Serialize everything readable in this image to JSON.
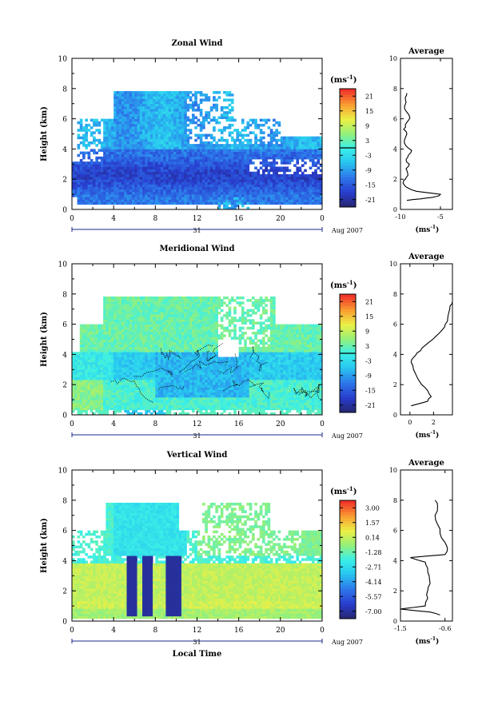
{
  "chart_data": [
    {
      "type": "heatmap",
      "title": "Zonal Wind",
      "ylabel": "Height (km)",
      "ylim": [
        0,
        10
      ],
      "xlim": [
        0,
        24
      ],
      "x_ticks": [
        "0",
        "4",
        "8",
        "12",
        "16",
        "20",
        "0"
      ],
      "y_ticks": [
        "0",
        "2",
        "4",
        "6",
        "8",
        "10"
      ],
      "date_label": "31",
      "month_label": "Aug 2007",
      "colorbar": {
        "unit_prefix": "(ms",
        "unit_exp": "-1",
        "unit_suffix": ")",
        "ticks": [
          "21",
          "15",
          "9",
          "3",
          "-3",
          "-9",
          "-15",
          "-21"
        ],
        "range": [
          -24,
          24
        ],
        "zero_line": true
      },
      "average": {
        "title": "Average",
        "xlabel_prefix": "(ms",
        "xlabel_exp": "-1",
        "xlabel_suffix": ")",
        "x_ticks": [
          "-10",
          "-5"
        ],
        "xlim": [
          -10,
          -3.5
        ],
        "profile": [
          [
            -9.2,
            0.6
          ],
          [
            -7.5,
            0.7
          ],
          [
            -6.0,
            0.8
          ],
          [
            -5.2,
            0.9
          ],
          [
            -5.0,
            1.0
          ],
          [
            -6.5,
            1.1
          ],
          [
            -8.0,
            1.2
          ],
          [
            -9.0,
            1.4
          ],
          [
            -9.5,
            1.6
          ],
          [
            -9.6,
            1.9
          ],
          [
            -9.3,
            2.1
          ],
          [
            -9.1,
            2.4
          ],
          [
            -9.3,
            2.7
          ],
          [
            -8.9,
            3.0
          ],
          [
            -9.3,
            3.3
          ],
          [
            -9.0,
            3.6
          ],
          [
            -8.6,
            3.9
          ],
          [
            -9.3,
            4.2
          ],
          [
            -9.5,
            4.6
          ],
          [
            -9.2,
            5.0
          ],
          [
            -9.6,
            5.3
          ],
          [
            -9.4,
            5.6
          ],
          [
            -9.0,
            5.9
          ],
          [
            -8.9,
            6.2
          ],
          [
            -9.3,
            6.5
          ],
          [
            -9.5,
            6.8
          ],
          [
            -9.3,
            7.1
          ],
          [
            -9.4,
            7.4
          ],
          [
            -9.2,
            7.7
          ]
        ]
      }
    },
    {
      "type": "heatmap",
      "title": "Meridional Wind",
      "ylabel": "Height (km)",
      "ylim": [
        0,
        10
      ],
      "xlim": [
        0,
        24
      ],
      "x_ticks": [
        "0",
        "4",
        "8",
        "12",
        "16",
        "20",
        "0"
      ],
      "y_ticks": [
        "0",
        "2",
        "4",
        "6",
        "8",
        "10"
      ],
      "date_label": "31",
      "month_label": "Aug 2007",
      "colorbar": {
        "unit_prefix": "(ms",
        "unit_exp": "-1",
        "unit_suffix": ")",
        "ticks": [
          "21",
          "15",
          "9",
          "3",
          "-3",
          "-9",
          "-15",
          "-21"
        ],
        "range": [
          -24,
          24
        ],
        "zero_line": true
      },
      "average": {
        "title": "Average",
        "xlabel_prefix": "(ms",
        "xlabel_exp": "-1",
        "xlabel_suffix": ")",
        "x_ticks": [
          "0",
          "2"
        ],
        "xlim": [
          -0.8,
          3.6
        ],
        "profile": [
          [
            0.1,
            0.6
          ],
          [
            1.5,
            0.9
          ],
          [
            1.8,
            1.2
          ],
          [
            1.5,
            1.6
          ],
          [
            1.0,
            2.0
          ],
          [
            0.6,
            2.5
          ],
          [
            0.3,
            3.0
          ],
          [
            0.1,
            3.5
          ],
          [
            0.3,
            3.8
          ],
          [
            0.6,
            4.1
          ],
          [
            1.0,
            4.4
          ],
          [
            1.6,
            4.8
          ],
          [
            2.2,
            5.2
          ],
          [
            2.7,
            5.6
          ],
          [
            3.0,
            6.0
          ],
          [
            3.2,
            6.4
          ],
          [
            3.3,
            6.8
          ],
          [
            3.4,
            7.2
          ],
          [
            3.6,
            7.5
          ]
        ]
      }
    },
    {
      "type": "heatmap",
      "title": "Vertical Wind",
      "ylabel": "Height (km)",
      "xlabel": "Local Time",
      "ylim": [
        0,
        10
      ],
      "xlim": [
        0,
        24
      ],
      "x_ticks": [
        "0",
        "4",
        "8",
        "12",
        "16",
        "20",
        "0"
      ],
      "y_ticks": [
        "0",
        "2",
        "4",
        "6",
        "8",
        "10"
      ],
      "date_label": "31",
      "month_label": "Aug 2007",
      "colorbar": {
        "unit_prefix": "(ms",
        "unit_exp": "-1",
        "unit_suffix": ")",
        "ticks": [
          "3.00",
          "1.57",
          "0.14",
          "-1.28",
          "-2.71",
          "-4.14",
          "-5.57",
          "-7.00"
        ],
        "range": [
          -8,
          4
        ],
        "zero_line": false
      },
      "average": {
        "title": "Average",
        "xlabel_prefix": "(ms",
        "xlabel_exp": "-1",
        "xlabel_suffix": ")",
        "x_ticks": [
          "-1.5",
          "-0.6"
        ],
        "xlim": [
          -1.5,
          -0.45
        ],
        "profile": [
          [
            -0.7,
            0.4
          ],
          [
            -0.9,
            0.6
          ],
          [
            -1.5,
            0.8
          ],
          [
            -1.0,
            1.0
          ],
          [
            -0.95,
            1.5
          ],
          [
            -0.95,
            2.0
          ],
          [
            -0.9,
            2.5
          ],
          [
            -0.92,
            3.0
          ],
          [
            -0.95,
            3.5
          ],
          [
            -1.0,
            3.9
          ],
          [
            -1.3,
            4.2
          ],
          [
            -0.6,
            4.4
          ],
          [
            -0.55,
            4.8
          ],
          [
            -0.6,
            5.2
          ],
          [
            -0.7,
            5.8
          ],
          [
            -0.75,
            6.4
          ],
          [
            -0.8,
            7.0
          ],
          [
            -0.75,
            7.6
          ],
          [
            -0.8,
            8.0
          ]
        ]
      }
    }
  ]
}
